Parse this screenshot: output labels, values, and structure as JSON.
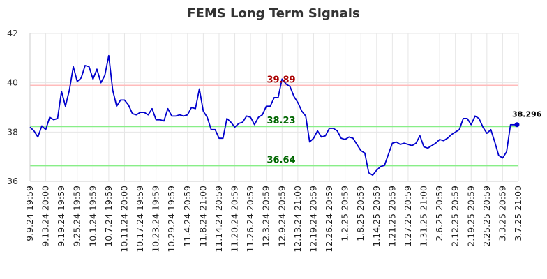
{
  "chart_data": {
    "type": "line",
    "title": "FEMS Long Term Signals",
    "xlabel": "",
    "ylabel": "",
    "ylim": [
      36,
      42
    ],
    "yticks": [
      "36",
      "38",
      "40",
      "42"
    ],
    "grid": true,
    "x_tick_labels": [
      "9.9.24 19:59",
      "9.13.24 20:00",
      "9.19.24 19:59",
      "9.25.24 19:59",
      "10.1.24 19:59",
      "10.7.24 19:59",
      "10.11.24 20:00",
      "10.17.24 19:59",
      "10.23.24 19:59",
      "10.29.24 19:59",
      "11.4.24 20:59",
      "11.8.24 21:00",
      "11.14.24 20:59",
      "11.20.24 20:59",
      "11.26.24 20:59",
      "12.3.24 20:59",
      "12.9.24 20:59",
      "12.13.24 21:00",
      "12.19.24 20:59",
      "12.26.24 20:59",
      "1.2.25 20:59",
      "1.8.25 20:59",
      "1.14.25 20:59",
      "1.21.25 20:59",
      "1.27.25 20:59",
      "1.31.25 21:00",
      "2.6.25 20:59",
      "2.12.25 20:59",
      "2.19.25 20:59",
      "2.25.25 20:59",
      "3.3.25 20:59",
      "3.7.25 21:00"
    ],
    "series": [
      {
        "color": "#0000cc",
        "values": [
          38.2,
          38.05,
          37.8,
          38.25,
          38.1,
          38.6,
          38.5,
          38.55,
          39.65,
          39.05,
          39.7,
          40.65,
          40.05,
          40.2,
          40.7,
          40.65,
          40.15,
          40.55,
          40.0,
          40.3,
          41.1,
          39.7,
          39.05,
          39.3,
          39.3,
          39.1,
          38.75,
          38.7,
          38.8,
          38.8,
          38.7,
          38.95,
          38.5,
          38.5,
          38.45,
          38.95,
          38.65,
          38.65,
          38.7,
          38.65,
          38.7,
          39.0,
          38.95,
          39.75,
          38.85,
          38.6,
          38.1,
          38.1,
          37.75,
          37.75,
          38.55,
          38.4,
          38.2,
          38.35,
          38.4,
          38.65,
          38.6,
          38.3,
          38.6,
          38.7,
          39.05,
          39.05,
          39.4,
          39.4,
          40.15,
          39.95,
          39.85,
          39.45,
          39.2,
          38.85,
          38.65,
          37.6,
          37.75,
          38.05,
          37.8,
          37.85,
          38.15,
          38.15,
          38.05,
          37.75,
          37.7,
          37.8,
          37.75,
          37.5,
          37.25,
          37.15,
          36.35,
          36.25,
          36.45,
          36.6,
          36.65,
          37.1,
          37.55,
          37.6,
          37.5,
          37.55,
          37.5,
          37.45,
          37.55,
          37.85,
          37.4,
          37.35,
          37.45,
          37.55,
          37.7,
          37.65,
          37.75,
          37.9,
          38.0,
          38.1,
          38.55,
          38.55,
          38.3,
          38.65,
          38.55,
          38.2,
          37.95,
          38.1,
          37.6,
          37.05,
          36.95,
          37.2,
          38.3,
          38.296,
          38.3
        ]
      }
    ],
    "levels": [
      {
        "value": 39.89,
        "label": "39.89",
        "line_color": "#ffbbbb",
        "text_color": "#aa0000"
      },
      {
        "value": 38.23,
        "label": "38.23",
        "line_color": "#88ee88",
        "text_color": "#006600"
      },
      {
        "value": 36.64,
        "label": "36.64",
        "line_color": "#88ee88",
        "text_color": "#006600"
      }
    ],
    "last_value_label": "38.296"
  }
}
